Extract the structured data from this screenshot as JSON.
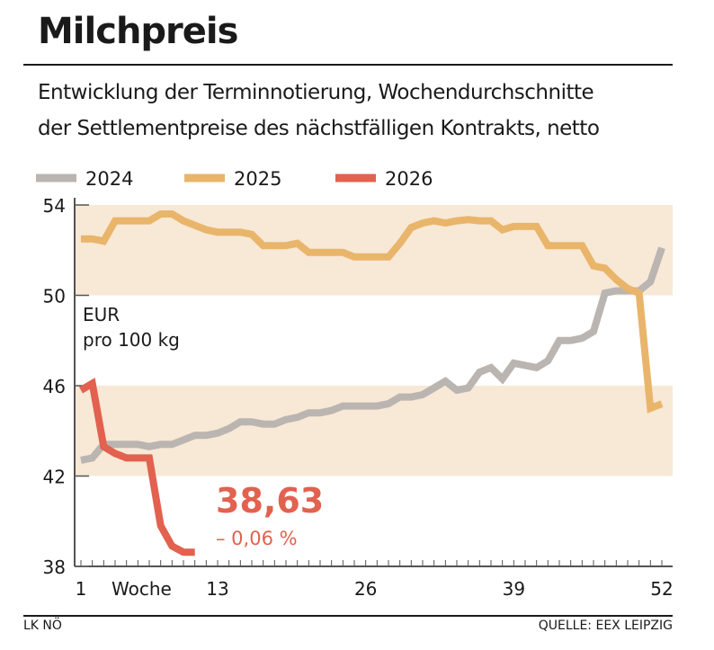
{
  "title": "Milchpreis",
  "subtitle": [
    "Entwicklung der Terminnotierung, Wochendurchschnitte",
    "der Settlementpreise des nächstfälligen Kontrakts, netto"
  ],
  "footer": {
    "left": "LK NÖ",
    "right": "QUELLE: EEX LEIPZIG"
  },
  "chart_data": {
    "type": "line",
    "xlabel": "Woche",
    "ylabel": [
      "EUR",
      "pro 100 kg"
    ],
    "xlim": [
      1,
      52
    ],
    "ylim": [
      38,
      54
    ],
    "xticks": [
      1,
      13,
      26,
      39,
      52
    ],
    "yticks": [
      38,
      42,
      46,
      50,
      54
    ],
    "shaded_bands": [
      [
        50,
        54
      ],
      [
        42,
        46
      ]
    ],
    "legend_position": "top-left",
    "colors": {
      "2024": "#bab5b1",
      "2025": "#e9b56b",
      "2026": "#e2614f",
      "band": "#f8e8d6"
    },
    "annotation": {
      "value": "38,63",
      "change": "– 0,06 %"
    },
    "series": [
      {
        "name": "2024",
        "x": [
          1,
          2,
          3,
          4,
          5,
          6,
          7,
          8,
          9,
          10,
          11,
          12,
          13,
          14,
          15,
          16,
          17,
          18,
          19,
          20,
          21,
          22,
          23,
          24,
          25,
          26,
          27,
          28,
          29,
          30,
          31,
          32,
          33,
          34,
          35,
          36,
          37,
          38,
          39,
          40,
          41,
          42,
          43,
          44,
          45,
          46,
          47,
          48,
          49,
          50,
          51,
          52
        ],
        "values": [
          42.7,
          42.8,
          43.4,
          43.4,
          43.4,
          43.4,
          43.3,
          43.4,
          43.4,
          43.6,
          43.8,
          43.8,
          43.9,
          44.1,
          44.4,
          44.4,
          44.3,
          44.3,
          44.5,
          44.6,
          44.8,
          44.8,
          44.9,
          45.1,
          45.1,
          45.1,
          45.1,
          45.2,
          45.5,
          45.5,
          45.6,
          45.9,
          46.2,
          45.8,
          45.9,
          46.6,
          46.8,
          46.3,
          47.0,
          46.9,
          46.8,
          47.1,
          48.0,
          48.0,
          48.1,
          48.4,
          50.1,
          50.2,
          50.2,
          50.2,
          50.6,
          52.1
        ]
      },
      {
        "name": "2025",
        "x": [
          1,
          2,
          3,
          4,
          5,
          6,
          7,
          8,
          9,
          10,
          11,
          12,
          13,
          14,
          15,
          16,
          17,
          18,
          19,
          20,
          21,
          22,
          23,
          24,
          25,
          26,
          27,
          28,
          29,
          30,
          31,
          32,
          33,
          34,
          35,
          36,
          37,
          38,
          39,
          40,
          41,
          42,
          43,
          44,
          45,
          46,
          47,
          48,
          49,
          50,
          51,
          52
        ],
        "values": [
          52.5,
          52.5,
          52.4,
          53.3,
          53.3,
          53.3,
          53.3,
          53.6,
          53.6,
          53.3,
          53.1,
          52.9,
          52.8,
          52.8,
          52.8,
          52.7,
          52.2,
          52.2,
          52.2,
          52.3,
          51.9,
          51.9,
          51.9,
          51.9,
          51.7,
          51.7,
          51.7,
          51.7,
          52.3,
          53.0,
          53.2,
          53.3,
          53.2,
          53.3,
          53.35,
          53.3,
          53.3,
          52.9,
          53.05,
          53.05,
          53.05,
          52.2,
          52.2,
          52.2,
          52.2,
          51.3,
          51.2,
          50.7,
          50.3,
          50.1,
          45.0,
          45.2
        ]
      },
      {
        "name": "2026",
        "x": [
          1,
          2,
          3,
          4,
          5,
          6,
          7,
          8,
          9,
          10,
          11
        ],
        "values": [
          45.8,
          46.1,
          43.3,
          43.0,
          42.8,
          42.8,
          42.8,
          39.8,
          38.9,
          38.63,
          38.63
        ]
      }
    ]
  }
}
